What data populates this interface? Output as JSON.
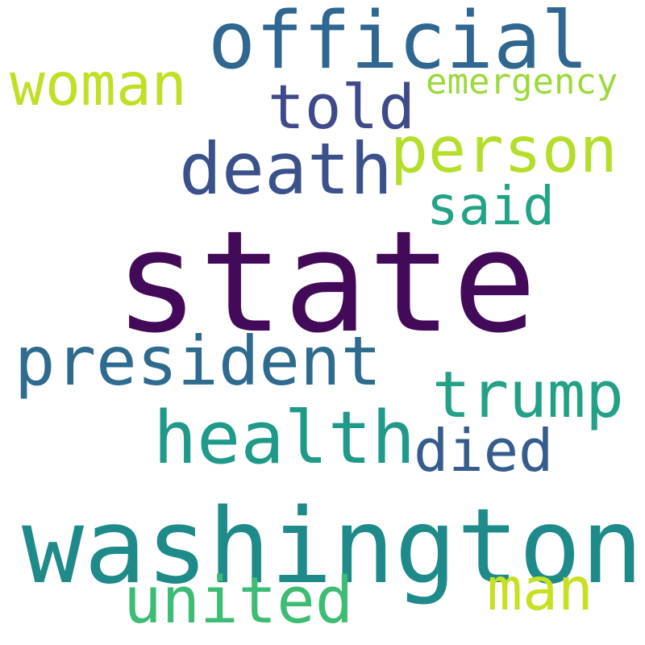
{
  "cloud": {
    "background": "#ffffff",
    "words": [
      {
        "key": "state",
        "text": "state",
        "color": "#440a5a"
      },
      {
        "key": "washington",
        "text": "washington",
        "color": "#1f8a8a"
      },
      {
        "key": "official",
        "text": "official",
        "color": "#2f6790"
      },
      {
        "key": "death",
        "text": "death",
        "color": "#3b518b"
      },
      {
        "key": "person",
        "text": "person",
        "color": "#b5de2b"
      },
      {
        "key": "president",
        "text": "president",
        "color": "#2e6b8f"
      },
      {
        "key": "health",
        "text": "health",
        "color": "#1f9a8a"
      },
      {
        "key": "woman",
        "text": "woman",
        "color": "#c0df25"
      },
      {
        "key": "told",
        "text": "told",
        "color": "#3e4a89"
      },
      {
        "key": "trump",
        "text": "trump",
        "color": "#22a187"
      },
      {
        "key": "died",
        "text": "died",
        "color": "#365c8d"
      },
      {
        "key": "united",
        "text": "united",
        "color": "#3dbc74"
      },
      {
        "key": "man",
        "text": "man",
        "color": "#c7e020"
      },
      {
        "key": "said",
        "text": "said",
        "color": "#22a385"
      },
      {
        "key": "emergency",
        "text": "emergency",
        "color": "#9cd93b"
      }
    ]
  }
}
